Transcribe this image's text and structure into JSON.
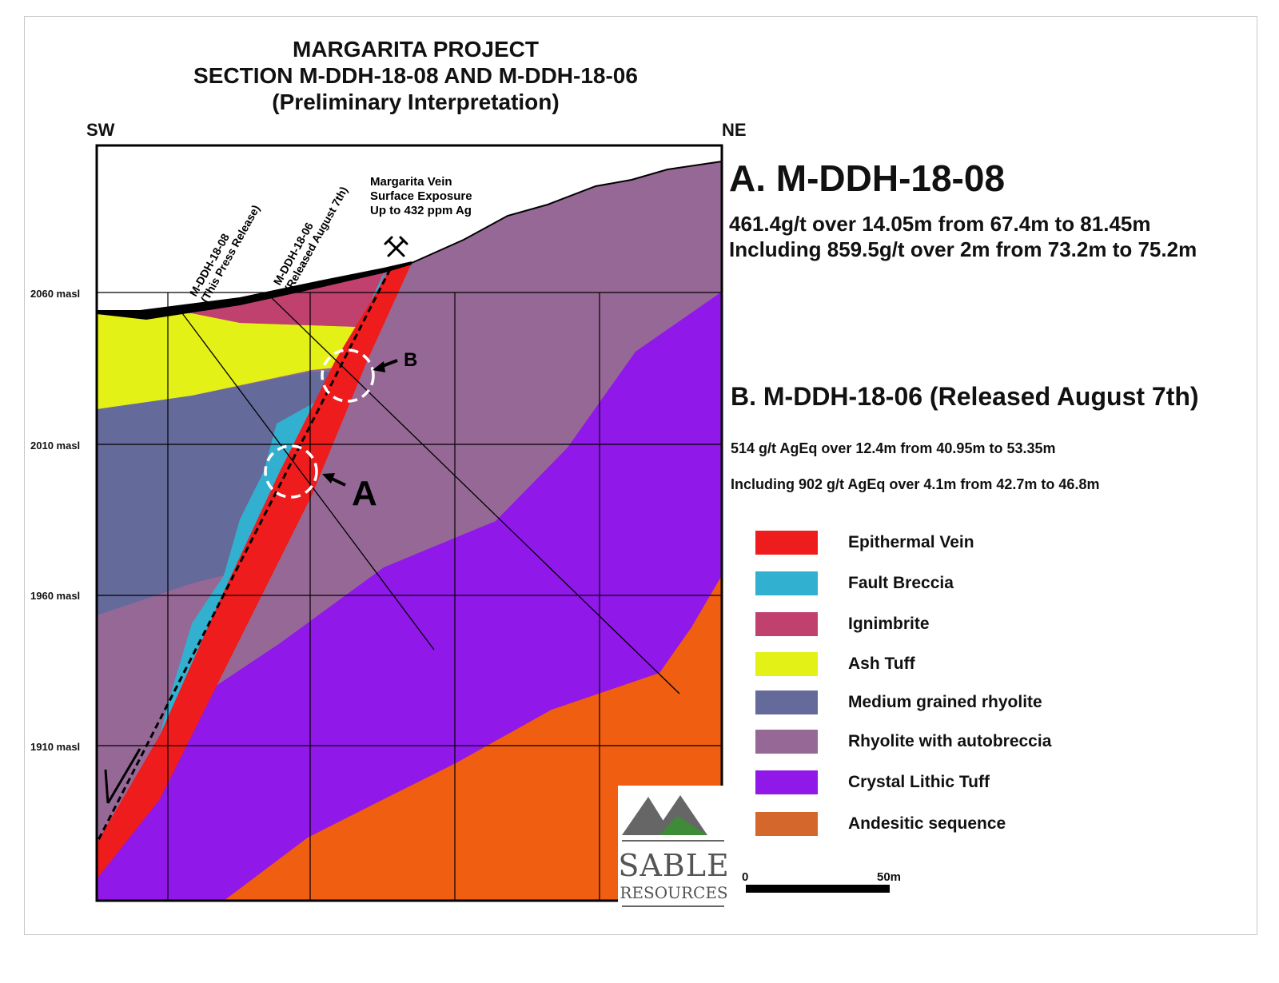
{
  "title": {
    "line1": "MARGARITA PROJECT",
    "line2": "SECTION M-DDH-18-08 AND M-DDH-18-06",
    "line3": "(Preliminary Interpretation)"
  },
  "orientation": {
    "left": "SW",
    "right": "NE"
  },
  "elevations": [
    "2060 masl",
    "2010 masl",
    "1960 masl",
    "1910 masl"
  ],
  "drillholes": [
    {
      "name": "M-DDH-18-08",
      "note": "(This Press Release)"
    },
    {
      "name": "M-DDH-18-06",
      "note": "(Released August 7th)"
    }
  ],
  "vein_exposure": {
    "line1": "Margarita Vein",
    "line2": "Surface Exposure",
    "line3": "Up to 432 ppm Ag"
  },
  "markers": {
    "a": "A",
    "b": "B"
  },
  "result_a": {
    "heading": "A. M-DDH-18-08",
    "line1": "461.4g/t over 14.05m from 67.4m to 81.45m",
    "line2": "Including 859.5g/t over 2m from 73.2m to 75.2m"
  },
  "result_b": {
    "heading": "B. M-DDH-18-06 (Released August 7th)",
    "line1": "514 g/t AgEq over 12.4m from 40.95m to 53.35m",
    "line2": "Including 902 g/t AgEq over 4.1m from 42.7m to 46.8m"
  },
  "legend": [
    {
      "label": "Epithermal Vein",
      "color": "#ee1c1c"
    },
    {
      "label": "Fault Breccia",
      "color": "#31b0cf"
    },
    {
      "label": "Ignimbrite",
      "color": "#c0406e"
    },
    {
      "label": "Ash Tuff",
      "color": "#e4f116"
    },
    {
      "label": "Medium grained rhyolite",
      "color": "#646a9a"
    },
    {
      "label": "Rhyolite with autobreccia",
      "color": "#966896"
    },
    {
      "label": "Crystal Lithic Tuff",
      "color": "#9018e8"
    },
    {
      "label": "Andesitic sequence",
      "color": "#d4682c"
    }
  ],
  "scale": {
    "start": "0",
    "end": "50m"
  },
  "logo": {
    "word1": "SABLE",
    "word2": "RESOURCES"
  }
}
